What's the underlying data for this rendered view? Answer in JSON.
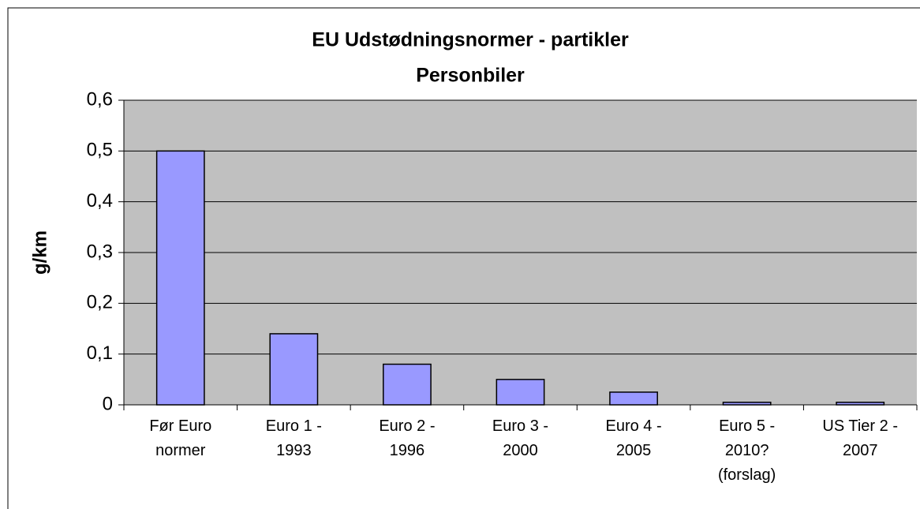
{
  "chart_data": {
    "type": "bar",
    "title": "EU Udstødningsnormer - partikler",
    "subtitle": "Personbiler",
    "y_label": "g/km",
    "categories": [
      "Før Euro\nnormer",
      "Euro 1 -\n1993",
      "Euro 2 -\n1996",
      "Euro 3 -\n2000",
      "Euro 4 -\n2005",
      "Euro 5 -\n2010?\n(forslag)",
      "US Tier 2 -\n2007"
    ],
    "values": [
      0.5,
      0.14,
      0.08,
      0.05,
      0.025,
      0.005,
      0.005
    ],
    "color": "#9999ff",
    "ylim": [
      0,
      0.6
    ],
    "yticks": [
      0,
      {
        "value": 0.1,
        "label": "0,1"
      },
      {
        "value": 0.2,
        "label": "0,2"
      },
      {
        "value": 0.3,
        "label": "0,3"
      },
      {
        "value": 0.4,
        "label": "0,4"
      },
      {
        "value": 0.5,
        "label": "0,5"
      },
      {
        "value": 0.6,
        "label": "0,6"
      }
    ],
    "grid": true
  }
}
